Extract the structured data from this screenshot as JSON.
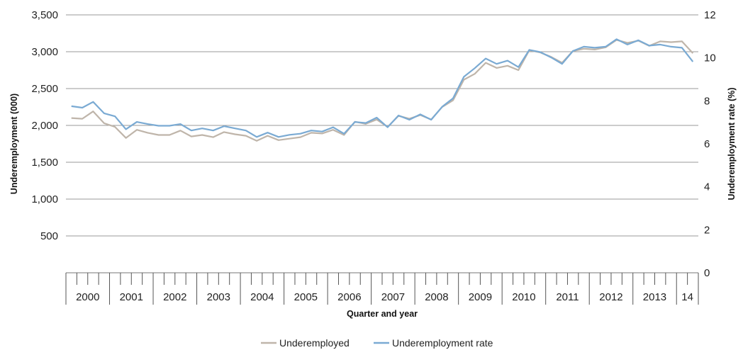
{
  "chart_data": {
    "type": "line",
    "xlabel": "Quarter and year",
    "ylabel_left": "Underemployment (000)",
    "ylabel_right": "Underemployment rate (%)",
    "ylim_left": [
      0,
      3500
    ],
    "ylim_right": [
      0,
      12
    ],
    "yticks_left": [
      "",
      "500",
      "1,000",
      "1,500",
      "2,000",
      "2,500",
      "3,000",
      "3,500"
    ],
    "yticks_right": [
      "0",
      "2",
      "4",
      "6",
      "8",
      "10",
      "12"
    ],
    "year_labels": [
      "2000",
      "2001",
      "2002",
      "2003",
      "2004",
      "2005",
      "2006",
      "2007",
      "2008",
      "2009",
      "2010",
      "2011",
      "2012",
      "2013",
      "14"
    ],
    "quarters_per_year": [
      4,
      4,
      4,
      4,
      4,
      4,
      4,
      4,
      4,
      4,
      4,
      4,
      4,
      4,
      2
    ],
    "grid": true,
    "legend_position": "bottom-center",
    "series": [
      {
        "name": "Underemployed",
        "axis": "left",
        "color": "#bfb5aa",
        "values": [
          2100,
          2090,
          2190,
          2030,
          1980,
          1830,
          1940,
          1900,
          1870,
          1870,
          1930,
          1850,
          1870,
          1840,
          1910,
          1880,
          1860,
          1790,
          1860,
          1800,
          1820,
          1840,
          1900,
          1890,
          1940,
          1870,
          2050,
          2020,
          2080,
          1980,
          2130,
          2090,
          2140,
          2080,
          2250,
          2340,
          2620,
          2700,
          2850,
          2780,
          2810,
          2750,
          3020,
          2990,
          2930,
          2850,
          3010,
          3040,
          3030,
          3060,
          3160,
          3120,
          3150,
          3080,
          3140,
          3130,
          3140,
          2980
        ]
      },
      {
        "name": "Underemployment rate",
        "axis": "right",
        "color": "#7aaad3",
        "values": [
          7.75,
          7.68,
          7.95,
          7.42,
          7.28,
          6.68,
          7.02,
          6.92,
          6.84,
          6.84,
          6.92,
          6.62,
          6.72,
          6.62,
          6.82,
          6.72,
          6.62,
          6.32,
          6.52,
          6.32,
          6.42,
          6.47,
          6.62,
          6.57,
          6.77,
          6.47,
          7.02,
          6.97,
          7.22,
          6.77,
          7.32,
          7.12,
          7.37,
          7.12,
          7.72,
          8.12,
          9.12,
          9.52,
          9.97,
          9.72,
          9.87,
          9.57,
          10.37,
          10.27,
          10.02,
          9.72,
          10.32,
          10.52,
          10.47,
          10.52,
          10.87,
          10.62,
          10.82,
          10.57,
          10.62,
          10.52,
          10.47,
          9.82
        ]
      }
    ]
  }
}
